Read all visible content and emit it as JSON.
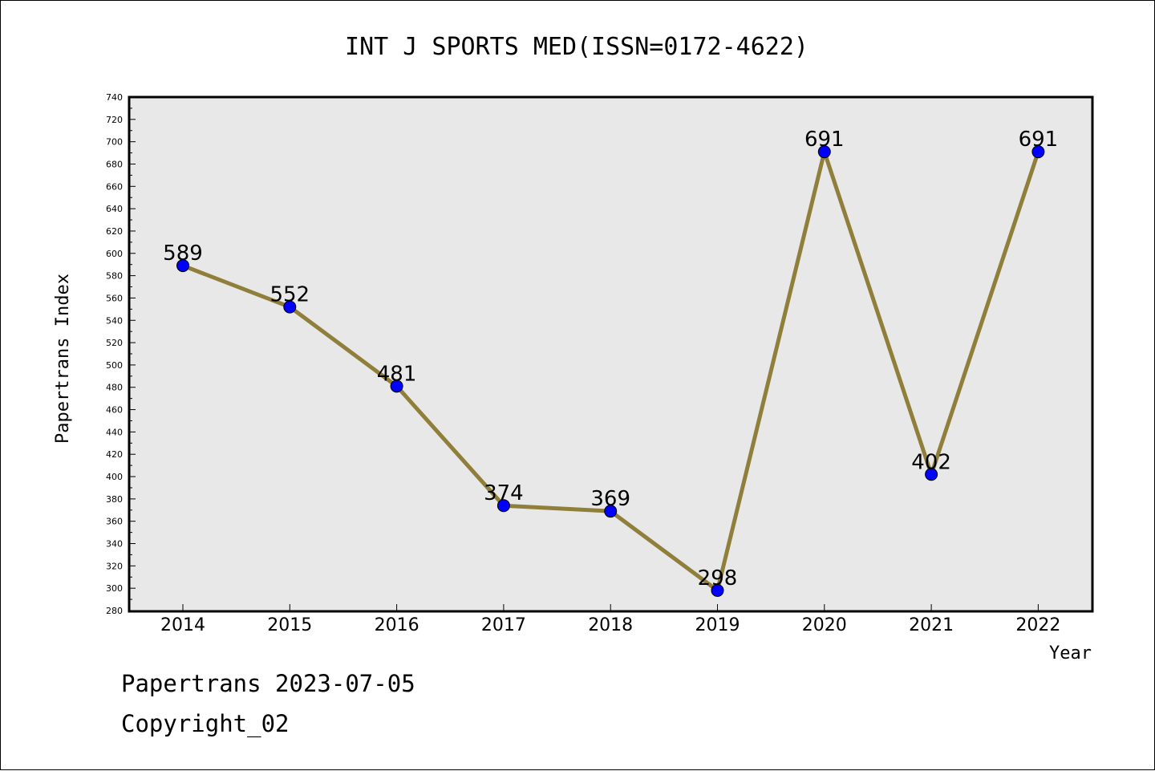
{
  "chart_data": {
    "type": "line",
    "title": "INT J SPORTS MED(ISSN=0172-4622)",
    "xlabel": "Year",
    "ylabel": "Papertrans Index",
    "categories": [
      "2014",
      "2015",
      "2016",
      "2017",
      "2018",
      "2019",
      "2020",
      "2021",
      "2022"
    ],
    "series": [
      {
        "values": [
          589,
          552,
          481,
          374,
          369,
          298,
          691,
          402,
          691
        ]
      }
    ],
    "data_labels": [
      "589",
      "552",
      "481",
      "374",
      "369",
      "298",
      "691",
      "402",
      "691"
    ],
    "ylim": [
      280,
      740
    ],
    "yticks": [
      280,
      300,
      320,
      340,
      360,
      380,
      400,
      420,
      440,
      460,
      480,
      500,
      520,
      540,
      560,
      580,
      600,
      620,
      640,
      660,
      680,
      700,
      720,
      740
    ],
    "grid": false,
    "legend": "none",
    "colors": {
      "line": "#8f7f3a",
      "marker": "#0000ff",
      "marker_outline": "#000000",
      "plot_background": "#e8e8e8"
    }
  },
  "footer": {
    "source": "Papertrans 2023-07-05",
    "copyright": "Copyright_02"
  }
}
